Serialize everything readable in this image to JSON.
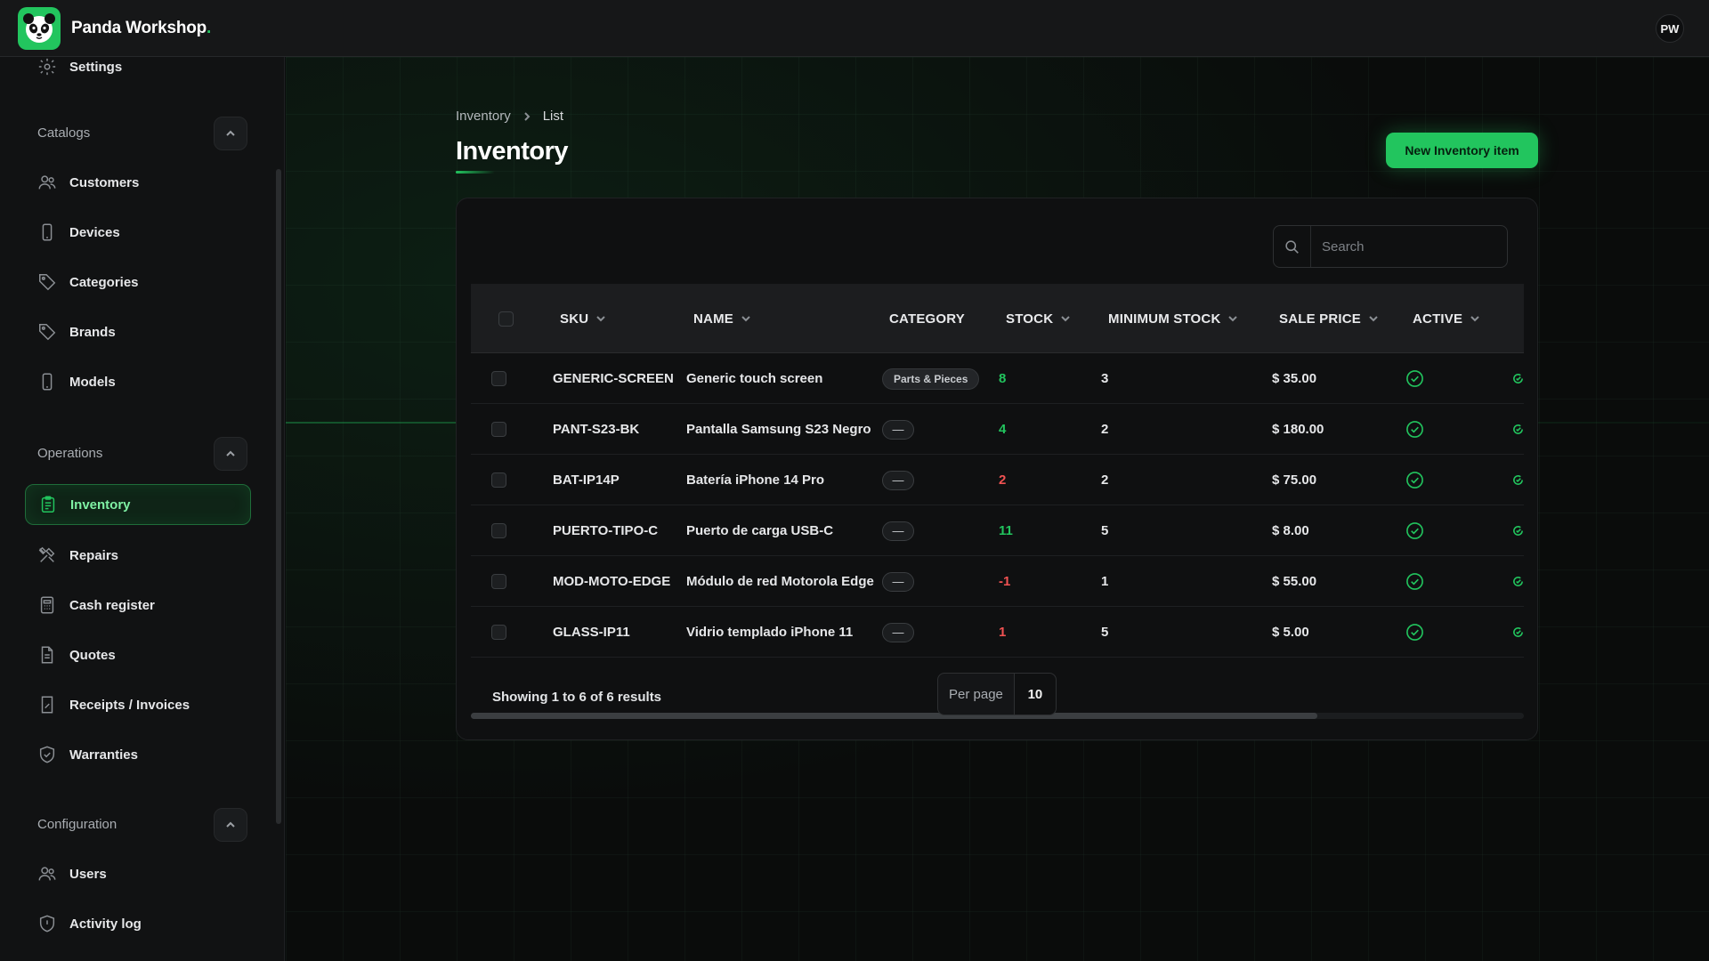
{
  "app": {
    "brand": "Panda Workshop",
    "brand_dot": ".",
    "user_initials": "PW"
  },
  "sidebar": {
    "top_item": {
      "label": "Settings",
      "icon": "gear-icon"
    },
    "groups": [
      {
        "label": "Catalogs",
        "items": [
          {
            "label": "Customers",
            "icon": "users-icon"
          },
          {
            "label": "Devices",
            "icon": "phone-icon"
          },
          {
            "label": "Categories",
            "icon": "tag-icon"
          },
          {
            "label": "Brands",
            "icon": "tag-icon"
          },
          {
            "label": "Models",
            "icon": "phone-icon"
          }
        ]
      },
      {
        "label": "Operations",
        "items": [
          {
            "label": "Inventory",
            "icon": "clipboard-icon",
            "active": true
          },
          {
            "label": "Repairs",
            "icon": "tools-icon"
          },
          {
            "label": "Cash register",
            "icon": "calculator-icon"
          },
          {
            "label": "Quotes",
            "icon": "document-icon"
          },
          {
            "label": "Receipts / Invoices",
            "icon": "receipt-icon"
          },
          {
            "label": "Warranties",
            "icon": "shield-check-icon"
          }
        ]
      },
      {
        "label": "Configuration",
        "items": [
          {
            "label": "Users",
            "icon": "users-icon"
          },
          {
            "label": "Activity log",
            "icon": "shield-alert-icon"
          }
        ]
      }
    ]
  },
  "breadcrumb": [
    "Inventory",
    "List"
  ],
  "page": {
    "title": "Inventory",
    "new_button": "New Inventory item"
  },
  "search": {
    "placeholder": "Search",
    "value": ""
  },
  "table": {
    "columns": [
      "SKU",
      "NAME",
      "CATEGORY",
      "STOCK",
      "MINIMUM STOCK",
      "SALE PRICE",
      "ACTIVE"
    ],
    "rows": [
      {
        "sku": "GENERIC-SCREEN",
        "name": "Generic touch screen",
        "category": "Parts & Pieces",
        "stock": "8",
        "stock_ok": true,
        "min_stock": "3",
        "price": "$ 35.00"
      },
      {
        "sku": "PANT-S23-BK",
        "name": "Pantalla Samsung S23 Negro",
        "category": "—",
        "stock": "4",
        "stock_ok": true,
        "min_stock": "2",
        "price": "$ 180.00"
      },
      {
        "sku": "BAT-IP14P",
        "name": "Batería iPhone 14 Pro",
        "category": "—",
        "stock": "2",
        "stock_ok": false,
        "min_stock": "2",
        "price": "$ 75.00"
      },
      {
        "sku": "PUERTO-TIPO-C",
        "name": "Puerto de carga USB-C",
        "category": "—",
        "stock": "11",
        "stock_ok": true,
        "min_stock": "5",
        "price": "$ 8.00"
      },
      {
        "sku": "MOD-MOTO-EDGE",
        "name": "Módulo de red Motorola Edge",
        "category": "—",
        "stock": "-1",
        "stock_ok": false,
        "min_stock": "1",
        "price": "$ 55.00"
      },
      {
        "sku": "GLASS-IP11",
        "name": "Vidrio templado iPhone 11",
        "category": "—",
        "stock": "1",
        "stock_ok": false,
        "min_stock": "5",
        "price": "$ 5.00"
      }
    ]
  },
  "footer": {
    "results": "Showing 1 to 6 of 6 results",
    "per_page_label": "Per page",
    "per_page_value": "10"
  },
  "colors": {
    "accent": "#22c55e",
    "danger": "#f05252",
    "background": "#0b0c0d"
  }
}
